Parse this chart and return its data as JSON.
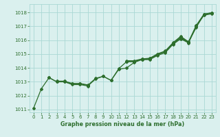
{
  "x": [
    0,
    1,
    2,
    3,
    4,
    5,
    6,
    7,
    8,
    9,
    10,
    11,
    12,
    13,
    14,
    15,
    16,
    17,
    18,
    19,
    20,
    21,
    22,
    23
  ],
  "line1": [
    1011.1,
    1012.5,
    1013.3,
    1013.0,
    1013.0,
    1012.8,
    1012.8,
    1012.7,
    1013.2,
    1013.4,
    1013.1,
    1013.9,
    1014.0,
    1014.4,
    1014.6,
    1014.6,
    1014.9,
    1015.1,
    1015.7,
    1016.1,
    1015.8,
    1017.0,
    1017.8,
    1017.9
  ],
  "line2": [
    null,
    null,
    1013.3,
    1013.0,
    1013.0,
    1012.85,
    1012.85,
    1012.75,
    1013.25,
    1013.4,
    1013.1,
    1013.95,
    1014.45,
    1014.45,
    1014.62,
    1014.65,
    1014.95,
    1015.2,
    1015.75,
    1016.15,
    1015.85,
    1017.0,
    1017.85,
    1017.95
  ],
  "line3": [
    null,
    null,
    null,
    1013.05,
    1013.05,
    1012.88,
    1012.88,
    1012.78,
    null,
    null,
    null,
    null,
    1014.47,
    1014.47,
    1014.63,
    1014.68,
    1014.97,
    1015.18,
    1015.78,
    1016.22,
    1015.87,
    1016.92,
    1017.87,
    1017.97
  ],
  "line4": [
    null,
    null,
    null,
    null,
    null,
    null,
    null,
    null,
    null,
    null,
    null,
    null,
    1014.52,
    1014.52,
    1014.65,
    1014.7,
    1015.02,
    1015.22,
    1015.82,
    1016.28,
    1015.88,
    1017.07,
    1017.88,
    1017.98
  ],
  "bg_color": "#daf0ee",
  "grid_color": "#aad8d4",
  "line_color": "#2d6e2d",
  "xlabel": "Graphe pression niveau de la mer (hPa)",
  "ylim": [
    1010.8,
    1018.6
  ],
  "xlim": [
    -0.5,
    23.5
  ],
  "yticks": [
    1011,
    1012,
    1013,
    1014,
    1015,
    1016,
    1017,
    1018
  ],
  "xticks": [
    0,
    1,
    2,
    3,
    4,
    5,
    6,
    7,
    8,
    9,
    10,
    11,
    12,
    13,
    14,
    15,
    16,
    17,
    18,
    19,
    20,
    21,
    22,
    23
  ]
}
